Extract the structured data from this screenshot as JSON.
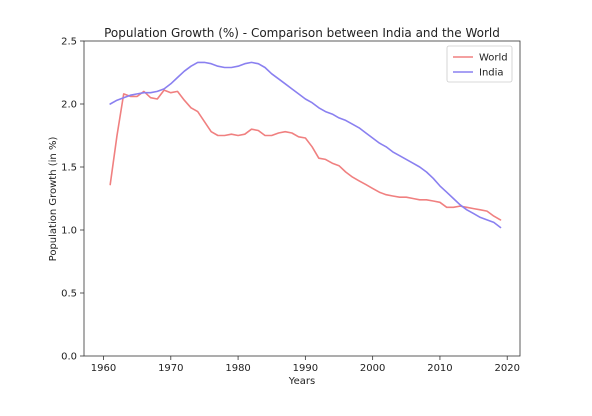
{
  "chart_data": {
    "type": "line",
    "title": "Population Growth (%) - Comparison between India and the World",
    "xlabel": "Years",
    "ylabel": "Population Growth (in %)",
    "xlim": [
      1957.1,
      2021.9
    ],
    "ylim": [
      0.0,
      2.5
    ],
    "x_ticks": [
      1960,
      1970,
      1980,
      1990,
      2000,
      2010,
      2020
    ],
    "y_ticks": [
      0.0,
      0.5,
      1.0,
      1.5,
      2.0,
      2.5
    ],
    "x_tick_labels": [
      "1960",
      "1970",
      "1980",
      "1990",
      "2000",
      "2010",
      "2020"
    ],
    "y_tick_labels": [
      "0.0",
      "0.5",
      "1.0",
      "1.5",
      "2.0",
      "2.5"
    ],
    "grid": false,
    "legend_position": "top-right",
    "series": [
      {
        "name": "World",
        "color": "#f08080",
        "x": [
          1961,
          1962,
          1963,
          1964,
          1965,
          1966,
          1967,
          1968,
          1969,
          1970,
          1971,
          1972,
          1973,
          1974,
          1975,
          1976,
          1977,
          1978,
          1979,
          1980,
          1981,
          1982,
          1983,
          1984,
          1985,
          1986,
          1987,
          1988,
          1989,
          1990,
          1991,
          1992,
          1993,
          1994,
          1995,
          1996,
          1997,
          1998,
          1999,
          2000,
          2001,
          2002,
          2003,
          2004,
          2005,
          2006,
          2007,
          2008,
          2009,
          2010,
          2011,
          2012,
          2013,
          2014,
          2015,
          2016,
          2017,
          2018,
          2019
        ],
        "values": [
          1.36,
          1.75,
          2.08,
          2.06,
          2.06,
          2.1,
          2.05,
          2.04,
          2.11,
          2.09,
          2.1,
          2.03,
          1.97,
          1.94,
          1.86,
          1.78,
          1.75,
          1.75,
          1.76,
          1.75,
          1.76,
          1.8,
          1.79,
          1.75,
          1.75,
          1.77,
          1.78,
          1.77,
          1.74,
          1.73,
          1.66,
          1.57,
          1.56,
          1.53,
          1.51,
          1.46,
          1.42,
          1.39,
          1.36,
          1.33,
          1.3,
          1.28,
          1.27,
          1.26,
          1.26,
          1.25,
          1.24,
          1.24,
          1.23,
          1.22,
          1.18,
          1.18,
          1.19,
          1.18,
          1.17,
          1.16,
          1.15,
          1.11,
          1.08
        ]
      },
      {
        "name": "India",
        "color": "#8a80f0",
        "x": [
          1961,
          1962,
          1963,
          1964,
          1965,
          1966,
          1967,
          1968,
          1969,
          1970,
          1971,
          1972,
          1973,
          1974,
          1975,
          1976,
          1977,
          1978,
          1979,
          1980,
          1981,
          1982,
          1983,
          1984,
          1985,
          1986,
          1987,
          1988,
          1989,
          1990,
          1991,
          1992,
          1993,
          1994,
          1995,
          1996,
          1997,
          1998,
          1999,
          2000,
          2001,
          2002,
          2003,
          2004,
          2005,
          2006,
          2007,
          2008,
          2009,
          2010,
          2011,
          2012,
          2013,
          2014,
          2015,
          2016,
          2017,
          2018,
          2019
        ],
        "values": [
          2.0,
          2.03,
          2.05,
          2.07,
          2.08,
          2.09,
          2.09,
          2.1,
          2.12,
          2.16,
          2.21,
          2.26,
          2.3,
          2.33,
          2.33,
          2.32,
          2.3,
          2.29,
          2.29,
          2.3,
          2.32,
          2.33,
          2.32,
          2.29,
          2.24,
          2.2,
          2.16,
          2.12,
          2.08,
          2.04,
          2.01,
          1.97,
          1.94,
          1.92,
          1.89,
          1.87,
          1.84,
          1.81,
          1.77,
          1.73,
          1.69,
          1.66,
          1.62,
          1.59,
          1.56,
          1.53,
          1.5,
          1.46,
          1.41,
          1.35,
          1.3,
          1.25,
          1.2,
          1.16,
          1.13,
          1.1,
          1.08,
          1.06,
          1.02
        ]
      }
    ]
  }
}
